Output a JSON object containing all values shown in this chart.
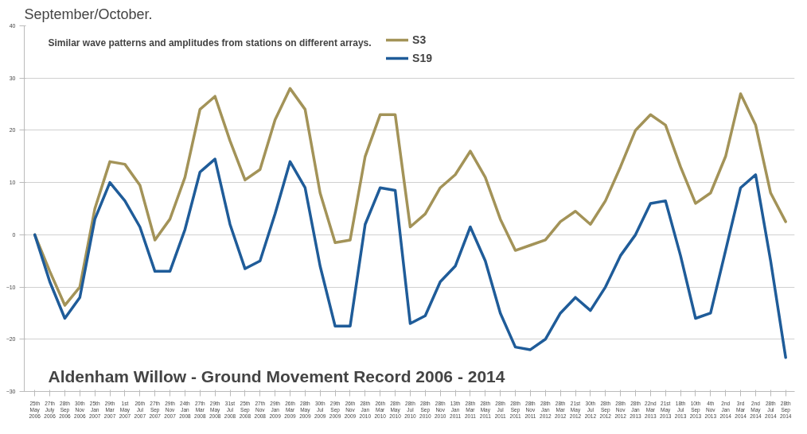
{
  "chart_data": {
    "type": "line",
    "title": "Aldenham Willow - Ground Movement Record 2006 - 2014",
    "annotations": [
      "September/October.",
      "Similar wave patterns and amplitudes from stations on different arrays."
    ],
    "categories": [
      "25th May 2006",
      "27th July 2006",
      "28th Sep 2006",
      "30th Nov 2006",
      "25th Jan 2007",
      "29th Mar 2007",
      "1st May 2007",
      "26th Jul 2007",
      "27th Sep 2007",
      "29th Nov 2007",
      "24th Jan 2008",
      "27th Mar 2008",
      "29th May 2008",
      "31st Jul 2008",
      "25th Sep 2008",
      "27th Nov 2008",
      "29th Jan 2009",
      "26th Mar 2009",
      "28th May 2009",
      "30th Jul 2009",
      "29th Sep 2009",
      "26th Nov 2009",
      "28th Jan 2010",
      "26th Mar 2010",
      "28th May 2010",
      "28th Jul 2010",
      "28th Sep 2010",
      "28th Nov 2010",
      "13th Jan 2011",
      "28th Mar 2011",
      "28th May 2011",
      "28th Jul 2011",
      "28th Sep 2011",
      "28th Nov 2011",
      "28th Jan 2012",
      "28th Mar 2012",
      "21st May 2012",
      "30th Jul 2012",
      "28th Sep 2012",
      "28th Nov 2012",
      "28th Jan 2013",
      "22nd Mar 2013",
      "21st May 2013",
      "18th Jul 2013",
      "10th Sep 2013",
      "4th Nov 2013",
      "2nd Jan 2014",
      "3rd Mar 2014",
      "2nd May 2014",
      "28th Jul 2014",
      "28th Sep 2014"
    ],
    "series": [
      {
        "name": "S3",
        "color": "#a39358",
        "values": [
          0,
          -7,
          -13.5,
          -10,
          5,
          14,
          13.5,
          9.5,
          -1,
          3,
          11,
          24,
          26.5,
          18,
          10.5,
          12.5,
          22,
          28,
          24,
          8,
          -1.5,
          -1,
          15,
          23,
          23,
          1.5,
          4,
          9,
          11.5,
          16,
          11,
          3,
          -3,
          -2,
          -1,
          2.5,
          4.5,
          2,
          6.5,
          13,
          20,
          23,
          21,
          13,
          6,
          8,
          15,
          27,
          21,
          8,
          2.5
        ]
      },
      {
        "name": "S19",
        "color": "#1f5c99",
        "values": [
          0,
          -9,
          -16,
          -12,
          3,
          10,
          6.5,
          1.5,
          -7,
          -7,
          1,
          12,
          14.5,
          2,
          -6.5,
          -5,
          4,
          14,
          9,
          -6,
          -17.5,
          -17.5,
          2,
          9,
          8.5,
          -17,
          -15.5,
          -9,
          -6,
          1.5,
          -5,
          -15,
          -21.5,
          -22,
          -20,
          -15,
          -12,
          -14.5,
          -10,
          -4,
          0,
          6,
          6.5,
          -4,
          -16,
          -15,
          -3,
          9,
          11.5,
          -5,
          -23.5
        ]
      }
    ],
    "ylim": [
      -30,
      40
    ],
    "yticks": [
      -30,
      -20,
      -10,
      0,
      10,
      20,
      30,
      40
    ],
    "grid": "y",
    "legend": "top",
    "marker": "none",
    "line_style": "solid"
  }
}
